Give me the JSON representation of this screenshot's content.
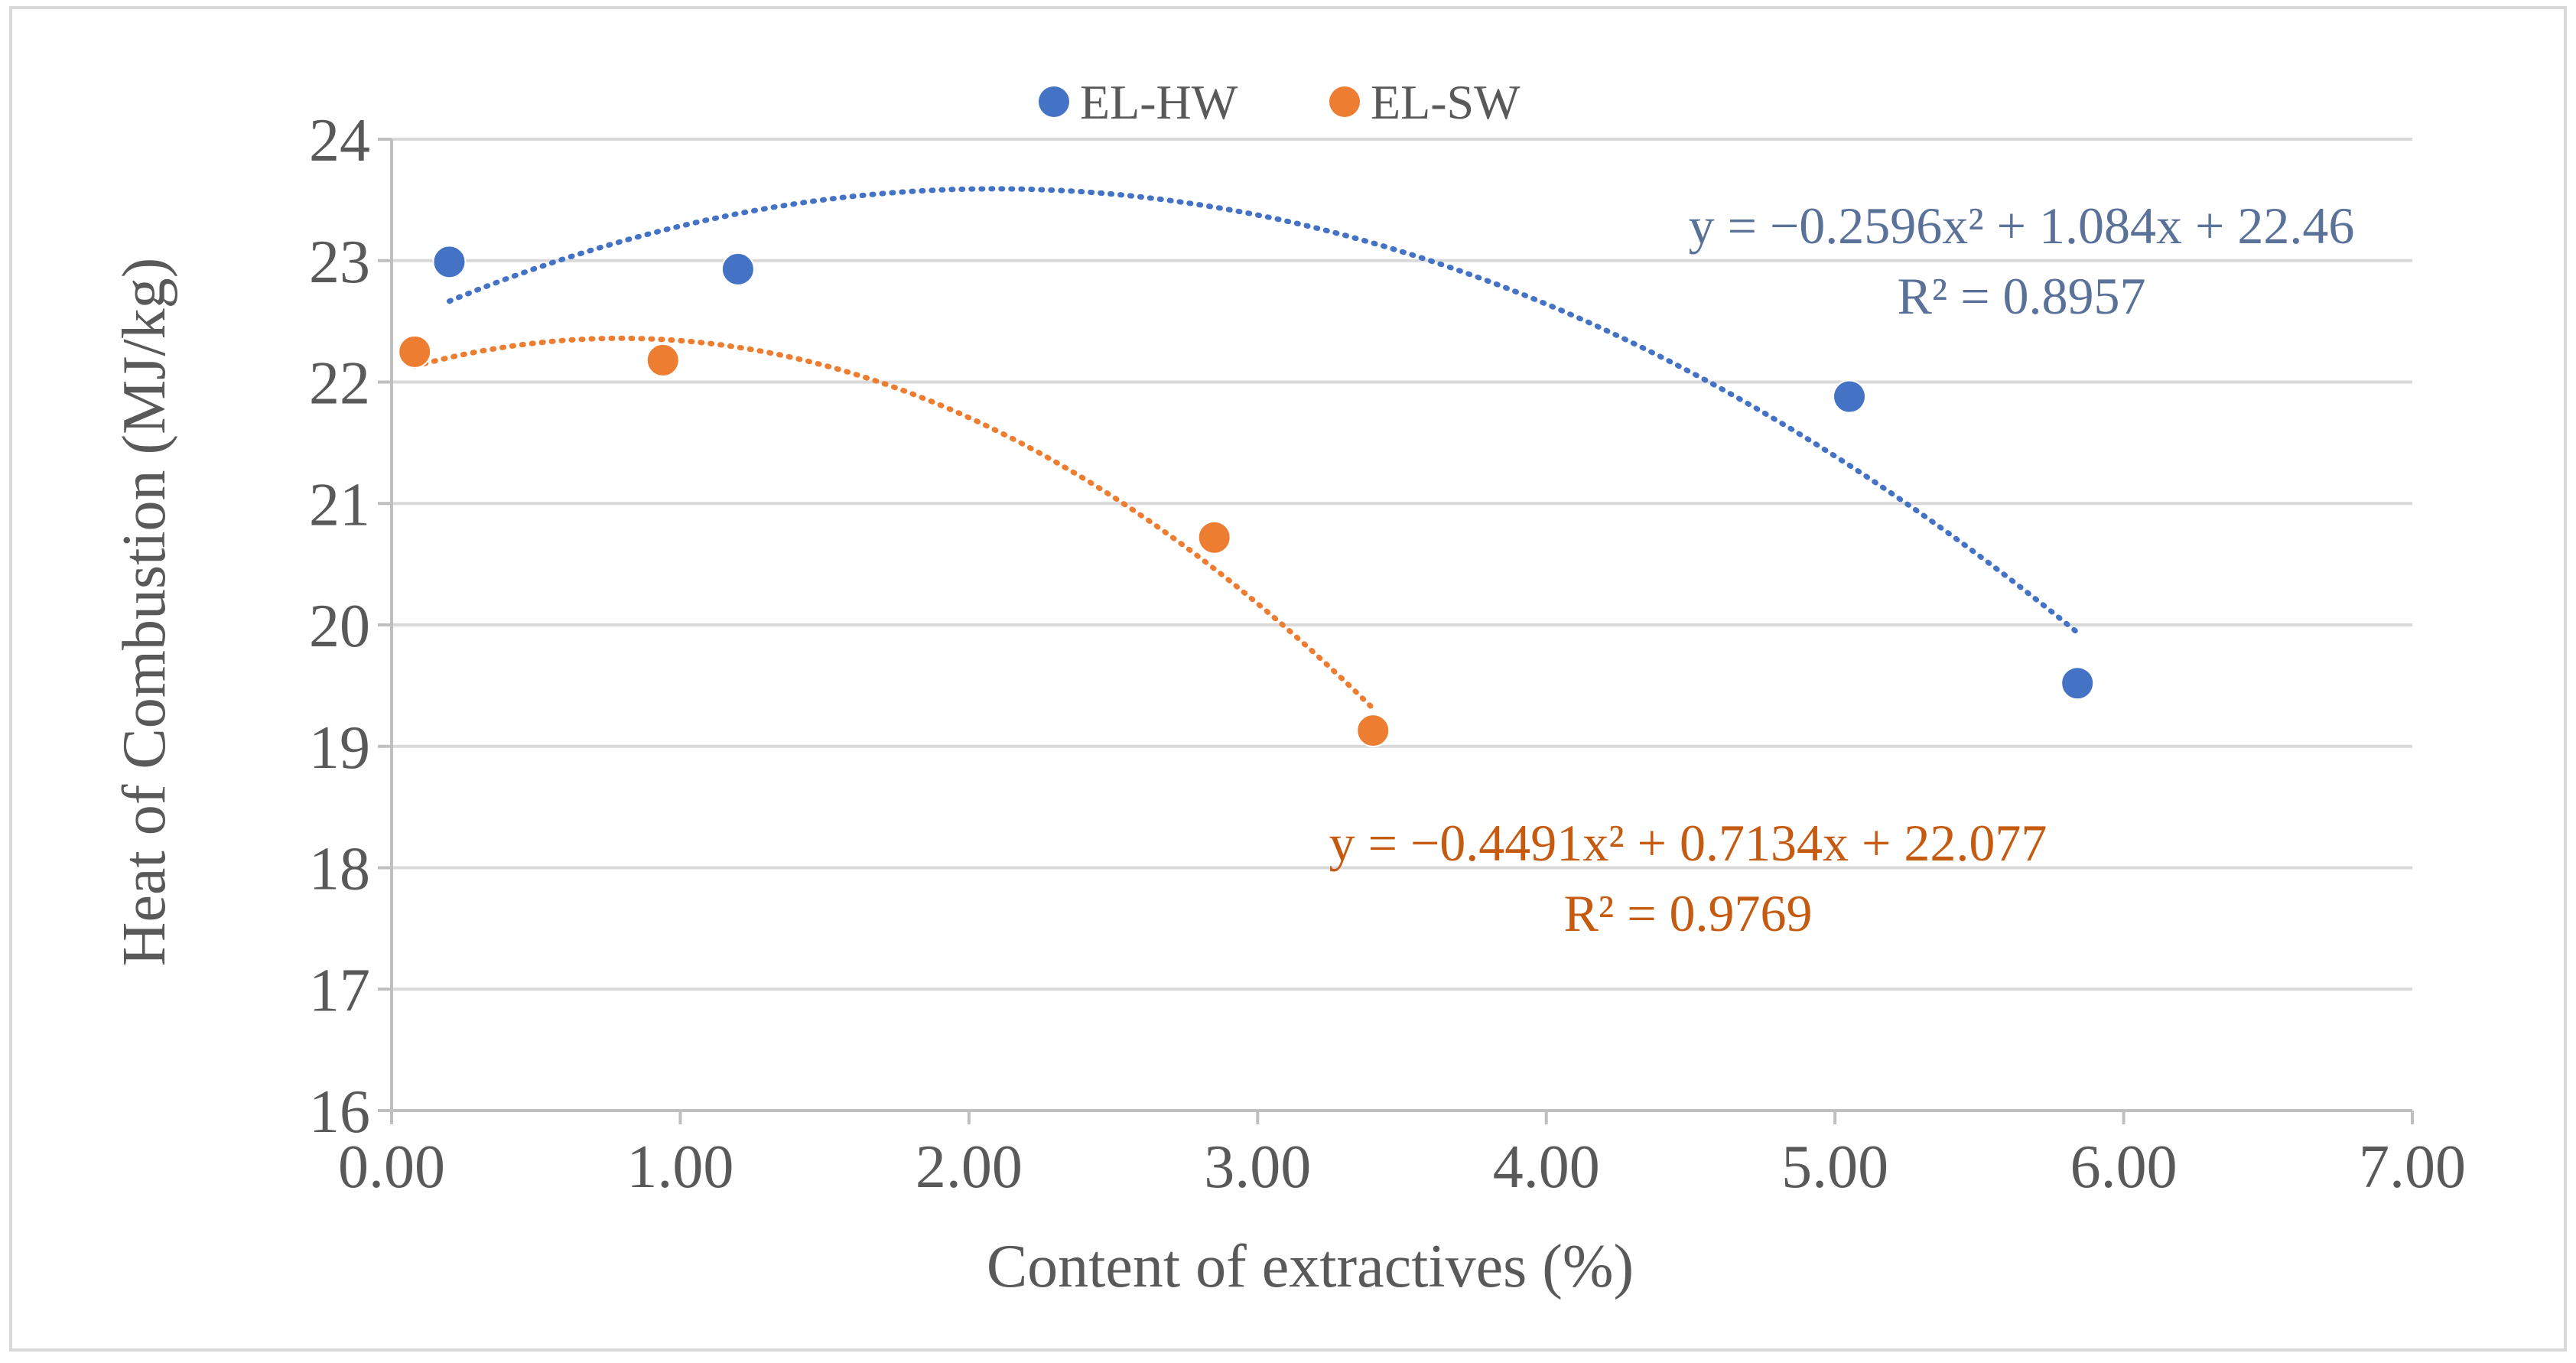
{
  "chart_data": {
    "type": "scatter",
    "title": "",
    "xlabel": "Content of extractives (%)",
    "ylabel": "Heat of Combustion (MJ/kg)",
    "xlim": [
      0,
      7
    ],
    "ylim": [
      16,
      24
    ],
    "x_ticks": [
      0,
      1,
      2,
      3,
      4,
      5,
      6,
      7
    ],
    "x_tick_labels": [
      "0.00",
      "1.00",
      "2.00",
      "3.00",
      "4.00",
      "5.00",
      "6.00",
      "7.00"
    ],
    "y_ticks": [
      16,
      17,
      18,
      19,
      20,
      21,
      22,
      23,
      24
    ],
    "y_tick_labels": [
      "16",
      "17",
      "18",
      "19",
      "20",
      "21",
      "22",
      "23",
      "24"
    ],
    "grid": "horizontal",
    "legend_position": "top-center",
    "series": [
      {
        "name": "EL-HW",
        "color": "#4472C4",
        "equation_color": "#5A7299",
        "x": [
          0.2,
          1.2,
          5.05,
          5.84
        ],
        "y": [
          22.99,
          22.93,
          21.88,
          19.52
        ],
        "trendline": {
          "type": "polynomial",
          "coefficients": [
            -0.2596,
            1.084,
            22.46
          ],
          "x_range": [
            0.2,
            5.84
          ],
          "equation": "y = −0.2596x² + 1.084x + 22.46",
          "r_squared": "R² = 0.8957"
        }
      },
      {
        "name": "EL-SW",
        "color": "#ED7D31",
        "equation_color": "#C55A11",
        "x": [
          0.08,
          0.94,
          2.85,
          3.4
        ],
        "y": [
          22.25,
          22.18,
          20.72,
          19.13
        ],
        "trendline": {
          "type": "polynomial",
          "coefficients": [
            -0.4491,
            0.7134,
            22.077
          ],
          "x_range": [
            0.08,
            3.4
          ],
          "equation": "y = −0.4491x² + 0.7134x + 22.077",
          "r_squared": "R² = 0.9769"
        }
      }
    ]
  }
}
